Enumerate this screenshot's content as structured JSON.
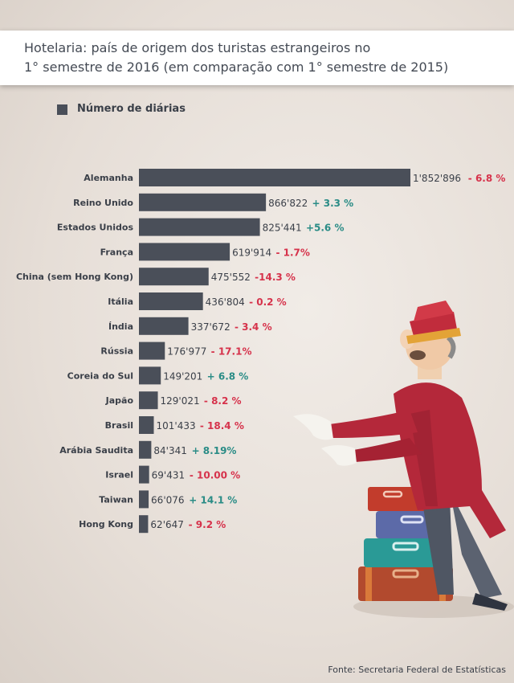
{
  "header": {
    "title_line1": "Hotelaria: país de origem dos turistas estrangeiros no",
    "title_line2": "1° semestre de 2016 (em comparação com 1° semestre de 2015)"
  },
  "legend": {
    "label": "Número de diárias"
  },
  "source": "Fonte: Secretaria Federal de Estatísticas",
  "colors": {
    "bar": "#4a4f59",
    "positive": "#2a8c86",
    "negative": "#d6324b"
  },
  "chart_data": {
    "type": "bar",
    "orientation": "horizontal",
    "series": [
      {
        "name": "Número de diárias"
      }
    ],
    "xlim": [
      0,
      1852896
    ],
    "items": [
      {
        "label": "Alemanha",
        "value": 1852896,
        "value_text": "1'852'896",
        "change_text": "- 6.8 %",
        "change": -6.8
      },
      {
        "label": "Reino Unido",
        "value": 866822,
        "value_text": "866'822",
        "change_text": "+ 3.3 %",
        "change": 3.3
      },
      {
        "label": "Estados Unidos",
        "value": 825441,
        "value_text": "825'441",
        "change_text": "+5.6 %",
        "change": 5.6
      },
      {
        "label": "França",
        "value": 619914,
        "value_text": "619'914",
        "change_text": "- 1.7%",
        "change": -1.7
      },
      {
        "label": "China (sem Hong Kong)",
        "value": 475552,
        "value_text": "475'552",
        "change_text": "-14.3 %",
        "change": -14.3
      },
      {
        "label": "Itália",
        "value": 436804,
        "value_text": "436'804",
        "change_text": "- 0.2 %",
        "change": -0.2
      },
      {
        "label": "Índia",
        "value": 337672,
        "value_text": "337'672",
        "change_text": "- 3.4 %",
        "change": -3.4
      },
      {
        "label": "Rússia",
        "value": 176977,
        "value_text": "176'977",
        "change_text": "- 17.1%",
        "change": -17.1
      },
      {
        "label": "Coreia do Sul",
        "value": 149201,
        "value_text": "149'201",
        "change_text": "+ 6.8 %",
        "change": 6.8
      },
      {
        "label": "Japão",
        "value": 129021,
        "value_text": "129'021",
        "change_text": "- 8.2 %",
        "change": -8.2
      },
      {
        "label": "Brasil",
        "value": 101433,
        "value_text": "101'433",
        "change_text": "- 18.4 %",
        "change": -18.4
      },
      {
        "label": "Arábia Saudita",
        "value": 84341,
        "value_text": "84'341",
        "change_text": "+ 8.19%",
        "change": 8.19
      },
      {
        "label": "Israel",
        "value": 69431,
        "value_text": "69'431",
        "change_text": "- 10.00 %",
        "change": -10.0
      },
      {
        "label": "Taiwan",
        "value": 66076,
        "value_text": "66'076",
        "change_text": "+ 14.1 %",
        "change": 14.1
      },
      {
        "label": "Hong Kong",
        "value": 62647,
        "value_text": "62'647",
        "change_text": "- 9.2 %",
        "change": -9.2
      }
    ]
  }
}
